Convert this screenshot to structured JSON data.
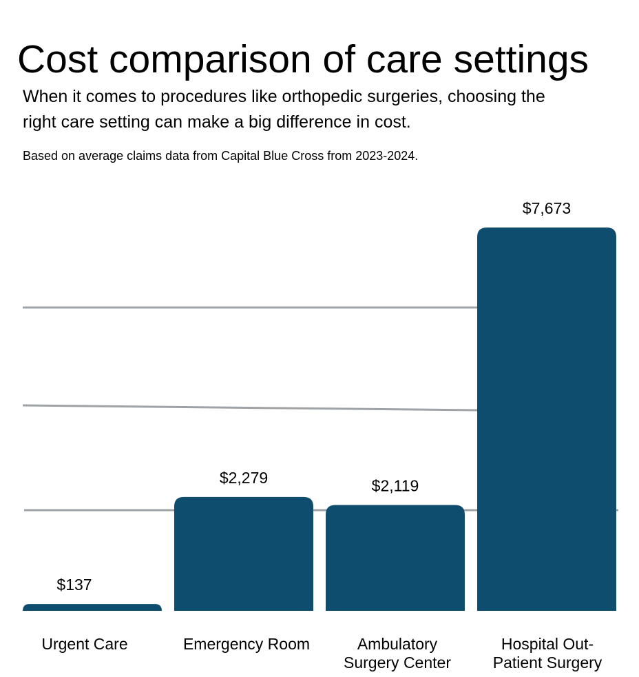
{
  "header": {
    "title": "Cost comparison of care settings",
    "subtitle": "When it comes to procedures like orthopedic surgeries, choosing the right care setting can make a big difference in cost.",
    "note": "Based on average claims data from Capital Blue Cross from 2023-2024."
  },
  "colors": {
    "bar": "#0f4d6f",
    "gridline": "#a0a3a5",
    "text": "#000000"
  },
  "chart_data": {
    "type": "bar",
    "title": "Cost comparison of care settings",
    "xlabel": "",
    "ylabel": "",
    "categories": [
      "Urgent Care",
      "Emergency Room",
      "Ambulatory Surgery Center",
      "Hospital Out-Patient Surgery"
    ],
    "category_lines": [
      [
        "Urgent Care"
      ],
      [
        "Emergency Room"
      ],
      [
        "Ambulatory",
        "Surgery Center"
      ],
      [
        "Hospital Out-",
        "Patient Surgery"
      ]
    ],
    "values": [
      137,
      2279,
      2119,
      7673
    ],
    "value_labels": [
      "$137",
      "$2,279",
      "$2,119",
      "$7,673"
    ],
    "ylim": [
      0,
      8000
    ],
    "gridlines": [
      2000,
      4000,
      6000
    ],
    "grid": true,
    "legend": "none"
  }
}
